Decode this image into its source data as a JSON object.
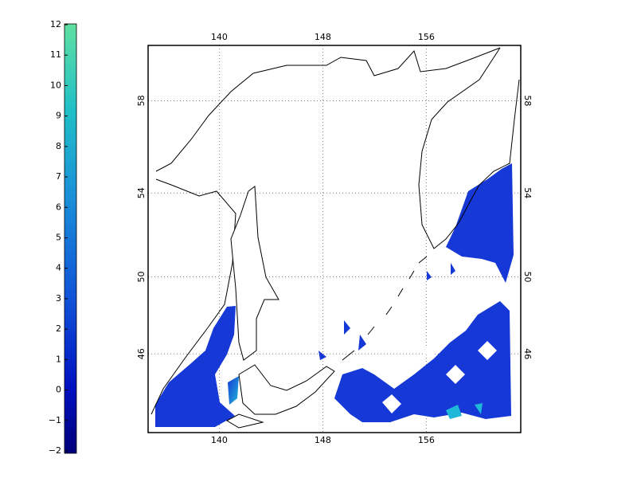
{
  "colorbar": {
    "lim": [
      -2,
      12
    ],
    "ticks": [
      {
        "value": -2,
        "label": "−2"
      },
      {
        "value": -1,
        "label": "−1"
      },
      0,
      1,
      2,
      3,
      4,
      5,
      6,
      7,
      8,
      9,
      10,
      11,
      12
    ]
  },
  "map": {
    "xlim": [
      134.5,
      163.3
    ],
    "ylim": [
      41.6,
      60.2
    ],
    "lon_ticks": [
      140,
      148,
      156
    ],
    "lat_ticks": [
      46,
      50,
      54,
      58
    ],
    "grid": true
  }
}
